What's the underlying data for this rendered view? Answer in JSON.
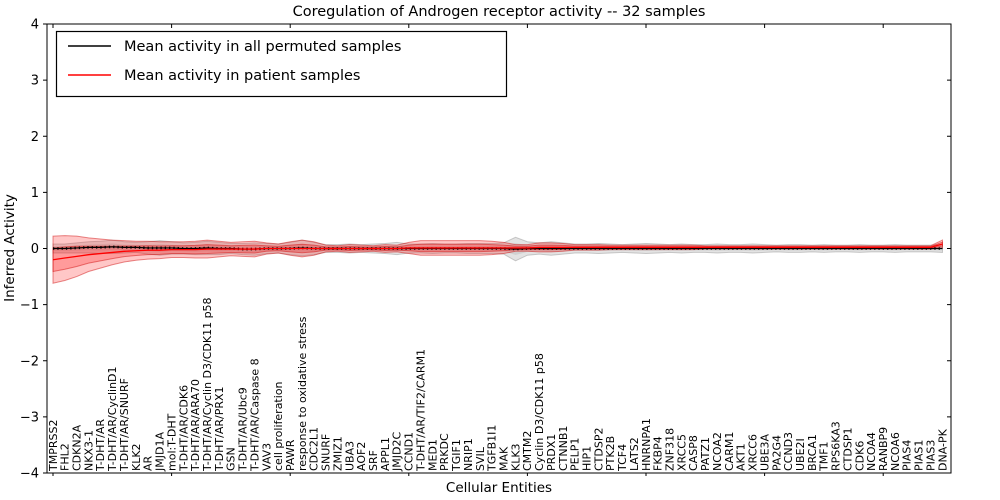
{
  "figure": {
    "title": "Coregulation of Androgen receptor activity -- 32 samples",
    "xlabel": "Cellular Entities",
    "ylabel": "Inferred Activity",
    "background_color": "#ffffff",
    "frame_color": "#000000"
  },
  "legend": {
    "position": "upper left",
    "entries": [
      {
        "label": "Mean activity in all permuted samples",
        "color": "#000000"
      },
      {
        "label": "Mean activity in patient samples",
        "color": "#ff0000"
      }
    ]
  },
  "chart_data": {
    "type": "line",
    "title": "Coregulation of Androgen receptor activity -- 32 samples",
    "xlabel": "Cellular Entities",
    "ylabel": "Inferred Activity",
    "ylim": [
      -4,
      4
    ],
    "yticks": [
      -4,
      -3,
      -2,
      -1,
      0,
      1,
      2,
      3,
      4
    ],
    "ytick_labels": [
      "−4",
      "−3",
      "−2",
      "−1",
      "0",
      "1",
      "2",
      "3",
      "4"
    ],
    "grid": false,
    "legend_position": "upper left",
    "band_note": "shaded regions are mean ±1 and ±2 sigma for each series",
    "categories": [
      "TMPRSS2",
      "FHL2",
      "CDKN2A",
      "NKX3-1",
      "T-DHT/AR",
      "T-DHT/AR/CyclinD1",
      "T-DHT/AR/SNURF",
      "KLK2",
      "AR",
      "JMJD1A",
      "mol:T-DHT",
      "T-DHT/AR/CDK6",
      "T-DHT/AR/ARA70",
      "T-DHT/AR/Cyclin D3/CDK11 p58",
      "T-DHT/AR/PRX1",
      "GSN",
      "T-DHT/AR/Ubc9",
      "T-DHT/AR/Caspase 8",
      "VAV3",
      "cell proliferation",
      "PAWR",
      "response to oxidative stress",
      "CDC2L1",
      "SNURF",
      "ZMIZ1",
      "UBA3",
      "AOF2",
      "SRF",
      "APPL1",
      "JMJD2C",
      "CCND1",
      "T-DHT/AR/TIF2/CARM1",
      "MED1",
      "PRKDC",
      "TGIF1",
      "NRIP1",
      "SVIL",
      "TGFB1I1",
      "MAK",
      "KLK3",
      "CMTM2",
      "Cyclin D3/CDK11 p58",
      "PRDX1",
      "CTNNB1",
      "PELP1",
      "HIP1",
      "CTDSP2",
      "PTK2B",
      "TCF4",
      "LATS2",
      "HNRNPA1",
      "FKBP4",
      "ZNF318",
      "XRCC5",
      "CASP8",
      "PATZ1",
      "NCOA2",
      "CARM1",
      "AKT1",
      "XRCC6",
      "UBE3A",
      "PA2G4",
      "CCND3",
      "UBE2I",
      "BRCA1",
      "TMF1",
      "RPS6KA3",
      "CTDSP1",
      "CDK6",
      "NCOA4",
      "RANBP9",
      "NCOA6",
      "PIAS4",
      "PIAS1",
      "PIAS3",
      "DNA-PK"
    ],
    "series": [
      {
        "name": "Mean activity in all permuted samples",
        "color": "#000000",
        "band_color": "#808080",
        "values": [
          0.0,
          0.0,
          0.01,
          0.02,
          0.02,
          0.03,
          0.02,
          0.02,
          0.01,
          0.01,
          0.01,
          0.0,
          0.0,
          0.01,
          0.0,
          0.0,
          -0.01,
          -0.01,
          0.0,
          0.0,
          0.0,
          0.01,
          0.0,
          0.0,
          0.0,
          0.0,
          0.0,
          0.0,
          0.0,
          0.0,
          0.0,
          0.0,
          0.0,
          0.0,
          0.0,
          0.0,
          0.0,
          0.0,
          0.0,
          -0.01,
          0.0,
          0.0,
          0.0,
          0.0,
          0.0,
          0.0,
          0.0,
          0.0,
          0.0,
          0.0,
          0.0,
          0.0,
          0.0,
          0.0,
          0.0,
          0.0,
          0.0,
          0.0,
          0.0,
          0.0,
          0.0,
          0.0,
          0.0,
          0.0,
          0.0,
          0.0,
          0.0,
          0.0,
          0.0,
          0.0,
          0.0,
          0.0,
          0.0,
          0.0,
          0.0,
          0.0
        ],
        "sigma": [
          0.04,
          0.04,
          0.045,
          0.05,
          0.055,
          0.06,
          0.05,
          0.045,
          0.055,
          0.065,
          0.055,
          0.05,
          0.055,
          0.06,
          0.055,
          0.045,
          0.05,
          0.055,
          0.045,
          0.04,
          0.055,
          0.07,
          0.055,
          0.035,
          0.035,
          0.04,
          0.035,
          0.04,
          0.045,
          0.055,
          0.04,
          0.04,
          0.045,
          0.04,
          0.04,
          0.045,
          0.045,
          0.045,
          0.05,
          0.105,
          0.06,
          0.05,
          0.06,
          0.05,
          0.04,
          0.04,
          0.045,
          0.04,
          0.035,
          0.04,
          0.045,
          0.04,
          0.035,
          0.04,
          0.035,
          0.035,
          0.04,
          0.035,
          0.035,
          0.04,
          0.035,
          0.03,
          0.035,
          0.035,
          0.03,
          0.035,
          0.03,
          0.03,
          0.035,
          0.03,
          0.03,
          0.035,
          0.03,
          0.03,
          0.03,
          0.035
        ]
      },
      {
        "name": "Mean activity in patient samples",
        "color": "#ff0000",
        "band_color": "#ff0000",
        "values": [
          -0.2,
          -0.17,
          -0.14,
          -0.11,
          -0.09,
          -0.07,
          -0.05,
          -0.04,
          -0.03,
          -0.03,
          -0.02,
          -0.02,
          -0.02,
          -0.01,
          -0.01,
          -0.01,
          -0.01,
          -0.01,
          0.0,
          0.0,
          0.0,
          0.0,
          0.0,
          0.0,
          0.0,
          0.0,
          0.0,
          0.0,
          0.0,
          0.0,
          0.01,
          0.01,
          0.01,
          0.01,
          0.01,
          0.01,
          0.01,
          0.01,
          0.01,
          0.01,
          0.01,
          0.02,
          0.02,
          0.02,
          0.02,
          0.02,
          0.02,
          0.02,
          0.02,
          0.02,
          0.02,
          0.02,
          0.02,
          0.02,
          0.02,
          0.02,
          0.02,
          0.02,
          0.02,
          0.02,
          0.02,
          0.02,
          0.02,
          0.02,
          0.02,
          0.02,
          0.02,
          0.02,
          0.02,
          0.02,
          0.02,
          0.02,
          0.02,
          0.02,
          0.02,
          0.08
        ],
        "sigma": [
          0.21,
          0.2,
          0.18,
          0.15,
          0.13,
          0.11,
          0.095,
          0.085,
          0.08,
          0.075,
          0.07,
          0.07,
          0.075,
          0.08,
          0.07,
          0.06,
          0.065,
          0.07,
          0.05,
          0.04,
          0.06,
          0.075,
          0.06,
          0.03,
          0.025,
          0.035,
          0.03,
          0.025,
          0.035,
          0.03,
          0.05,
          0.065,
          0.065,
          0.065,
          0.065,
          0.065,
          0.065,
          0.06,
          0.05,
          0.03,
          0.03,
          0.04,
          0.04,
          0.035,
          0.025,
          0.025,
          0.025,
          0.02,
          0.02,
          0.02,
          0.02,
          0.02,
          0.02,
          0.02,
          0.02,
          0.015,
          0.015,
          0.015,
          0.015,
          0.015,
          0.015,
          0.015,
          0.015,
          0.015,
          0.015,
          0.015,
          0.015,
          0.015,
          0.015,
          0.015,
          0.015,
          0.015,
          0.015,
          0.015,
          0.015,
          0.035
        ]
      }
    ]
  }
}
